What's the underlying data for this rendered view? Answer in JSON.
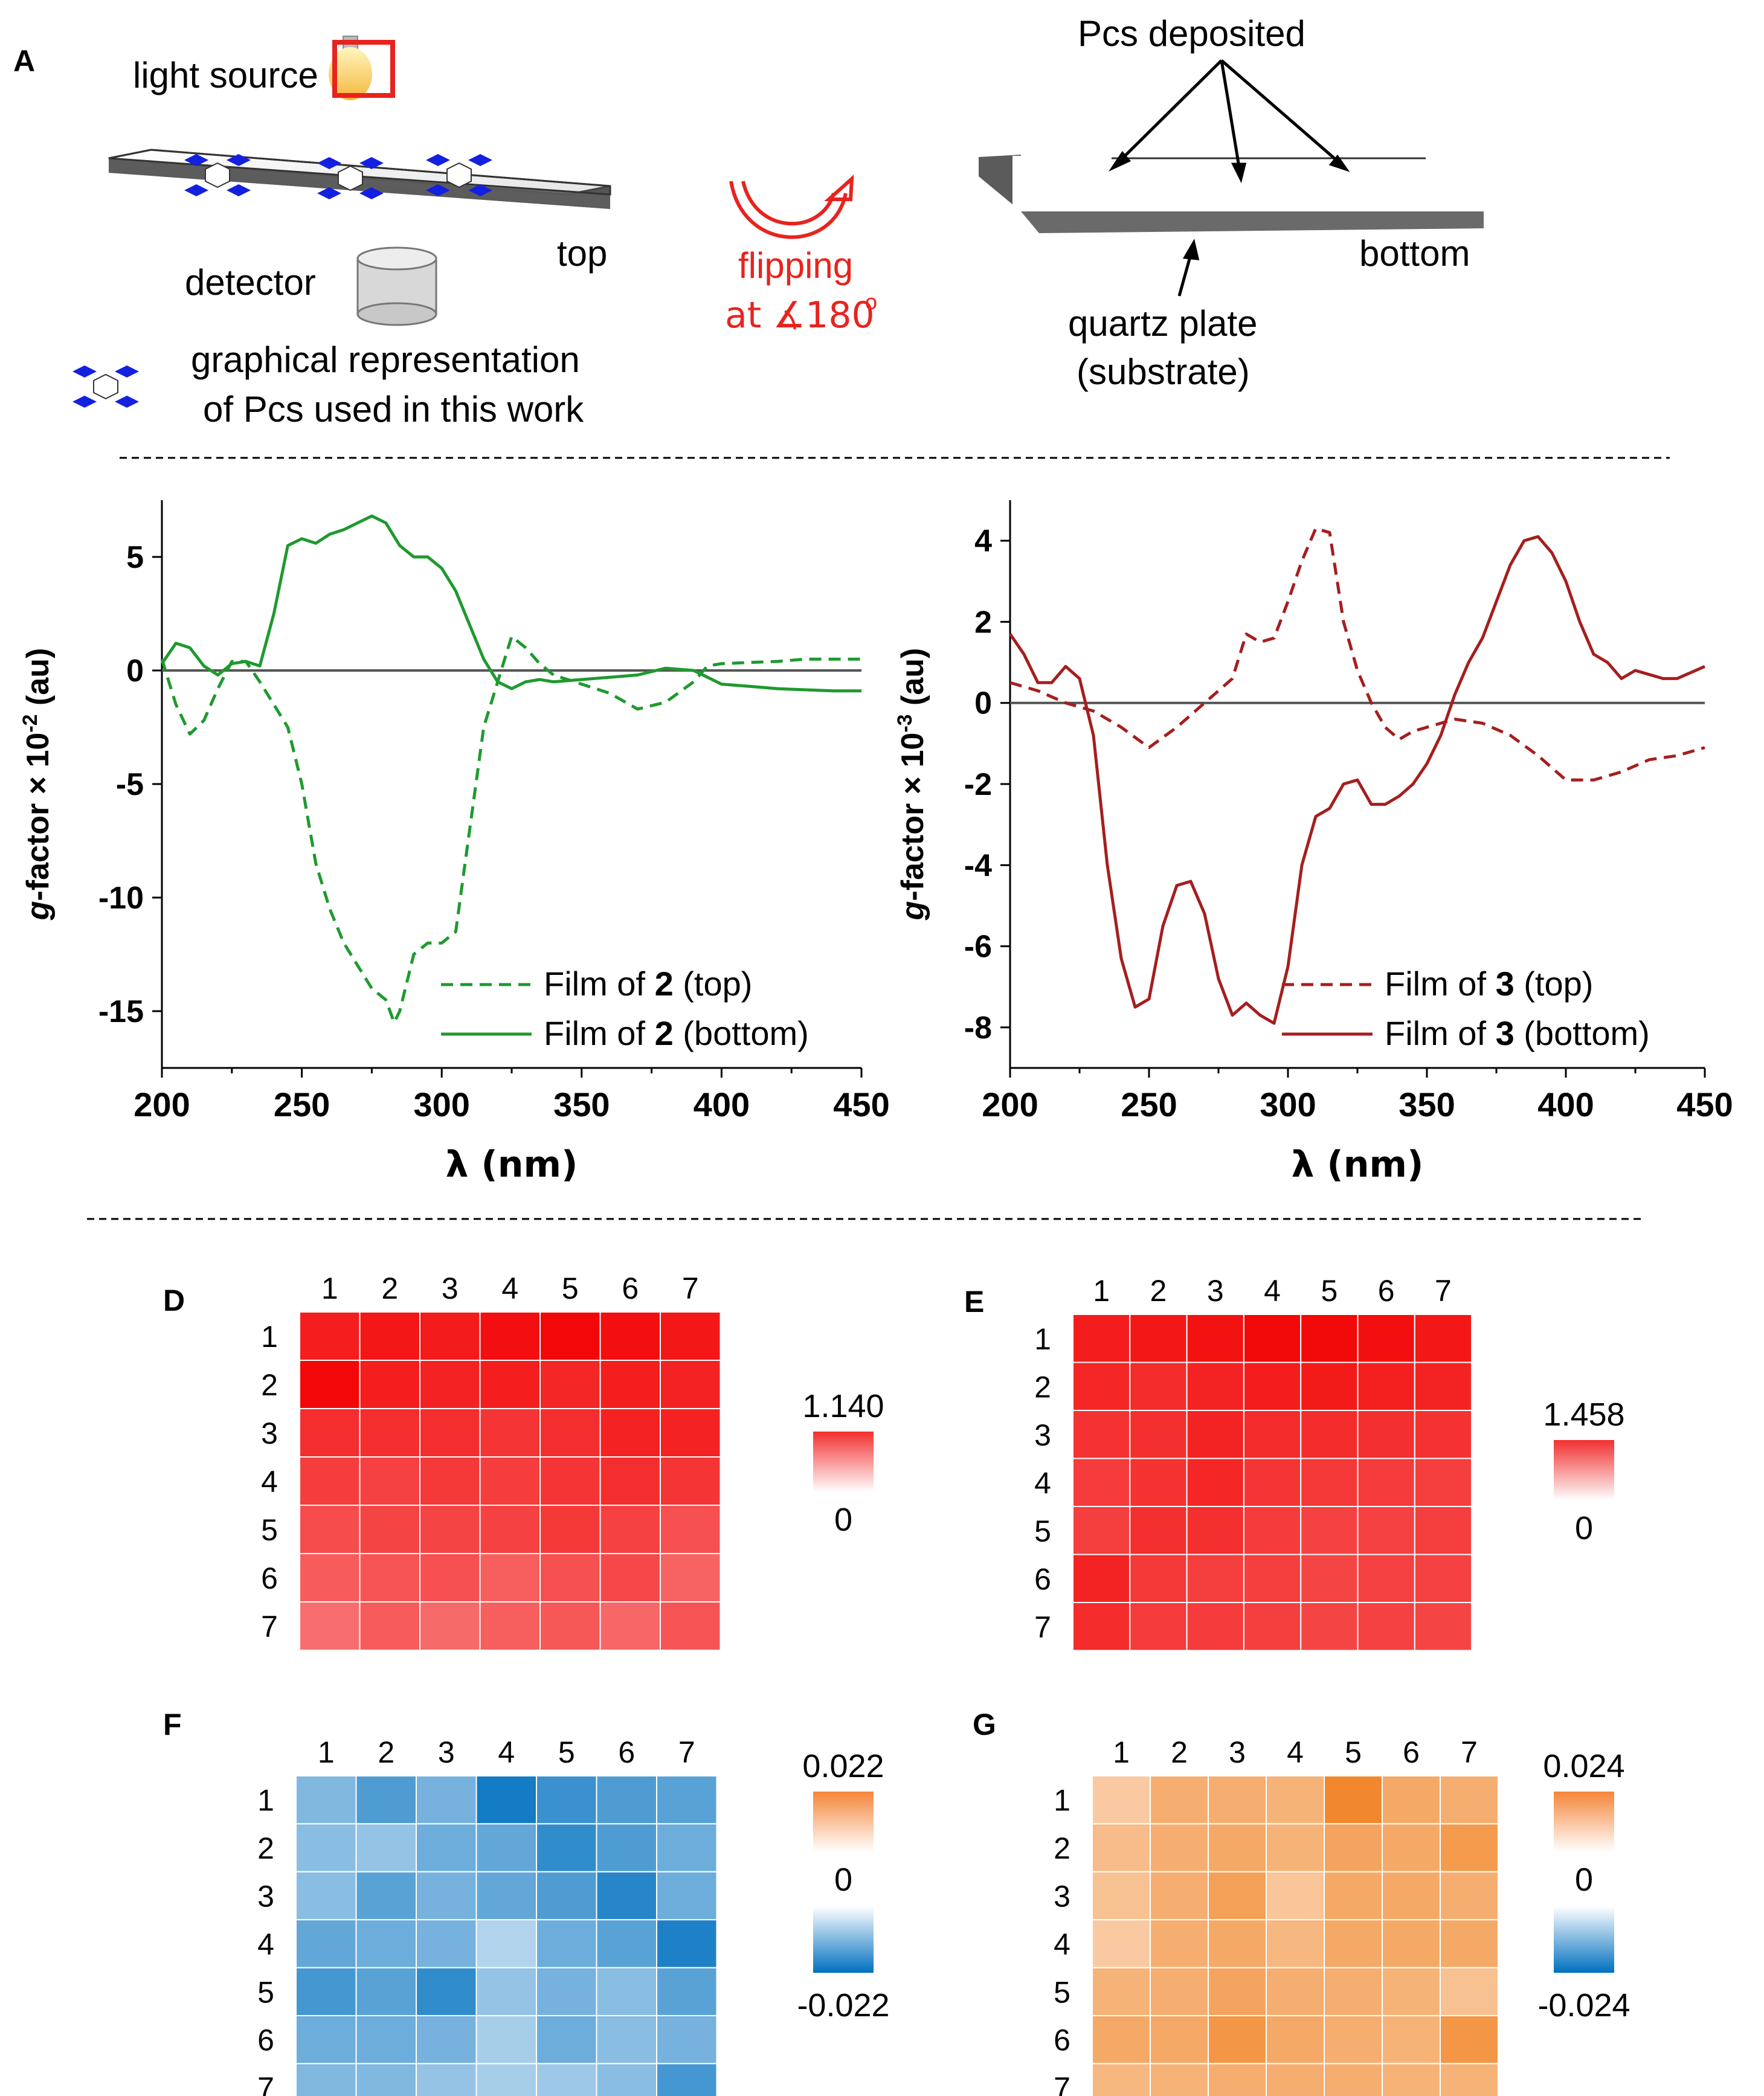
{
  "panel_a": {
    "letter": "A",
    "light_source": "light source",
    "detector": "detector",
    "top": "top",
    "flip_line1": "flipping",
    "flip_line2": "at ∡180",
    "flip_degree": "o",
    "pcs_deposited": "Pcs deposited",
    "bottom": "bottom",
    "quartz1": "quartz plate",
    "quartz2": "(substrate)",
    "legend1": "graphical representation",
    "legend2": "of Pcs used in this work"
  },
  "colors": {
    "green": "#1e9a2e",
    "darkred": "#a61e1e",
    "heat_red": "#f20000",
    "heat_blue": "#0070c0",
    "heat_orange": "#f07a14",
    "annot_red": "#e8231e",
    "molecule_blue": "#1420e0"
  },
  "chart_data": [
    {
      "type": "line",
      "id": "chart-b",
      "xlabel": "λ (nm)",
      "ylabel": "g-factor × 10",
      "ylabel_exp": "-2",
      "ylabel_unit": " (au)",
      "xlim": [
        200,
        450
      ],
      "ylim": [
        -17.5,
        7.5
      ],
      "xticks": [
        "200",
        "250",
        "300",
        "350",
        "400",
        "450"
      ],
      "yticks": [
        "5",
        "0",
        "-5",
        "-10",
        "-15"
      ],
      "ytick_values": [
        5,
        0,
        -5,
        -10,
        -15
      ],
      "legend": [
        {
          "prefix": "Film of ",
          "num": "2",
          "suffix": " (top)"
        },
        {
          "prefix": "Film of ",
          "num": "2",
          "suffix": " (bottom)"
        }
      ],
      "series": [
        {
          "name": "Film of 2 (top)",
          "style": "dashed",
          "x": [
            200,
            205,
            210,
            215,
            220,
            225,
            230,
            235,
            240,
            245,
            250,
            255,
            260,
            265,
            270,
            275,
            280,
            283,
            285,
            290,
            295,
            300,
            305,
            310,
            315,
            320,
            325,
            330,
            335,
            340,
            345,
            350,
            360,
            370,
            380,
            390,
            395,
            400,
            410,
            420,
            430,
            440,
            450
          ],
          "y": [
            0.5,
            -1.5,
            -2.8,
            -2.2,
            -0.8,
            0.4,
            0.4,
            -0.5,
            -1.5,
            -2.5,
            -5.0,
            -8.5,
            -10.5,
            -12.0,
            -13.0,
            -14.0,
            -14.5,
            -15.5,
            -15.0,
            -12.5,
            -12.0,
            -12.0,
            -11.5,
            -7.0,
            -2.5,
            -0.5,
            1.5,
            1.0,
            0.3,
            -0.2,
            -0.4,
            -0.6,
            -1.0,
            -1.7,
            -1.4,
            -0.5,
            0.2,
            0.3,
            0.35,
            0.4,
            0.5,
            0.5,
            0.5
          ]
        },
        {
          "name": "Film of 2 (bottom)",
          "style": "solid",
          "x": [
            200,
            205,
            210,
            215,
            220,
            225,
            230,
            235,
            240,
            245,
            250,
            255,
            260,
            265,
            270,
            275,
            280,
            285,
            290,
            295,
            300,
            305,
            310,
            315,
            320,
            325,
            330,
            335,
            340,
            350,
            360,
            370,
            380,
            390,
            395,
            400,
            410,
            420,
            430,
            440,
            450
          ],
          "y": [
            0.3,
            1.2,
            1.0,
            0.2,
            -0.2,
            0.3,
            0.4,
            0.2,
            2.5,
            5.5,
            5.8,
            5.6,
            6.0,
            6.2,
            6.5,
            6.8,
            6.5,
            5.5,
            5.0,
            5.0,
            4.5,
            3.5,
            2.0,
            0.5,
            -0.5,
            -0.8,
            -0.5,
            -0.4,
            -0.5,
            -0.4,
            -0.3,
            -0.2,
            0.1,
            0.0,
            -0.3,
            -0.6,
            -0.7,
            -0.8,
            -0.85,
            -0.9,
            -0.9
          ]
        }
      ]
    },
    {
      "type": "line",
      "id": "chart-c",
      "xlabel": "λ (nm)",
      "ylabel": "g-factor × 10",
      "ylabel_exp": "-3",
      "ylabel_unit": " (au)",
      "xlim": [
        200,
        450
      ],
      "ylim": [
        -9,
        5
      ],
      "xticks": [
        "200",
        "250",
        "300",
        "350",
        "400",
        "450"
      ],
      "yticks": [
        "4",
        "2",
        "0",
        "-2",
        "-4",
        "-6",
        "-8"
      ],
      "ytick_values": [
        4,
        2,
        0,
        -2,
        -4,
        -6,
        -8
      ],
      "legend": [
        {
          "prefix": "Film of ",
          "num": "3",
          "suffix": " (top)"
        },
        {
          "prefix": "Film of ",
          "num": "3",
          "suffix": " (bottom)"
        }
      ],
      "series": [
        {
          "name": "Film of 3 (top)",
          "style": "dashed",
          "x": [
            200,
            210,
            220,
            230,
            240,
            250,
            260,
            270,
            280,
            285,
            290,
            295,
            300,
            305,
            310,
            315,
            320,
            325,
            330,
            335,
            340,
            345,
            350,
            360,
            370,
            380,
            390,
            400,
            410,
            420,
            430,
            440,
            450
          ],
          "y": [
            0.5,
            0.3,
            0.0,
            -0.2,
            -0.6,
            -1.1,
            -0.6,
            0.0,
            0.6,
            1.7,
            1.5,
            1.6,
            2.5,
            3.5,
            4.3,
            4.2,
            2.0,
            0.8,
            0.0,
            -0.6,
            -0.9,
            -0.7,
            -0.6,
            -0.4,
            -0.5,
            -0.8,
            -1.3,
            -1.9,
            -1.9,
            -1.7,
            -1.4,
            -1.3,
            -1.1
          ]
        },
        {
          "name": "Film of 3 (bottom)",
          "style": "solid",
          "x": [
            200,
            205,
            210,
            215,
            220,
            225,
            230,
            235,
            240,
            245,
            250,
            255,
            260,
            265,
            270,
            275,
            280,
            285,
            290,
            295,
            300,
            305,
            310,
            315,
            320,
            325,
            330,
            335,
            340,
            345,
            350,
            355,
            360,
            365,
            370,
            375,
            380,
            385,
            390,
            395,
            400,
            405,
            410,
            415,
            420,
            425,
            430,
            435,
            440,
            445,
            450
          ],
          "y": [
            1.7,
            1.2,
            0.5,
            0.5,
            0.9,
            0.6,
            -0.8,
            -4.0,
            -6.3,
            -7.5,
            -7.3,
            -5.5,
            -4.5,
            -4.4,
            -5.2,
            -6.8,
            -7.7,
            -7.4,
            -7.7,
            -7.9,
            -6.5,
            -4.0,
            -2.8,
            -2.6,
            -2.0,
            -1.9,
            -2.5,
            -2.5,
            -2.3,
            -2.0,
            -1.5,
            -0.8,
            0.2,
            1.0,
            1.6,
            2.5,
            3.4,
            4.0,
            4.1,
            3.7,
            3.0,
            2.0,
            1.2,
            1.0,
            0.6,
            0.8,
            0.7,
            0.6,
            0.6,
            0.75,
            0.9
          ]
        }
      ]
    },
    {
      "type": "heatmap",
      "id": "heat-d",
      "label": "D",
      "col_labels": [
        "1",
        "2",
        "3",
        "4",
        "5",
        "6",
        "7"
      ],
      "row_labels": [
        "1",
        "2",
        "3",
        "4",
        "5",
        "6",
        "7"
      ],
      "color": "#f20000",
      "scale_max": "1.140",
      "scale_mid": "0",
      "vmax": 1.14,
      "values": [
        [
          0.98,
          1.02,
          1.0,
          1.06,
          1.1,
          1.06,
          1.02
        ],
        [
          1.1,
          0.98,
          0.96,
          0.98,
          0.94,
          0.98,
          0.96
        ],
        [
          0.9,
          0.9,
          0.9,
          0.86,
          0.9,
          0.96,
          0.96
        ],
        [
          0.82,
          0.8,
          0.84,
          0.82,
          0.86,
          0.9,
          0.86
        ],
        [
          0.74,
          0.78,
          0.78,
          0.8,
          0.84,
          0.8,
          0.72
        ],
        [
          0.66,
          0.7,
          0.72,
          0.64,
          0.72,
          0.76,
          0.62
        ],
        [
          0.56,
          0.66,
          0.58,
          0.64,
          0.68,
          0.6,
          0.7
        ]
      ]
    },
    {
      "type": "heatmap",
      "id": "heat-e",
      "label": "E",
      "col_labels": [
        "1",
        "2",
        "3",
        "4",
        "5",
        "6",
        "7"
      ],
      "row_labels": [
        "1",
        "2",
        "3",
        "4",
        "5",
        "6",
        "7"
      ],
      "color": "#f20000",
      "scale_max": "1.458",
      "scale_mid": "0",
      "vmax": 1.458,
      "values": [
        [
          1.26,
          1.3,
          1.34,
          1.4,
          1.4,
          1.36,
          1.3
        ],
        [
          1.2,
          1.16,
          1.22,
          1.26,
          1.28,
          1.24,
          1.22
        ],
        [
          1.12,
          1.14,
          1.22,
          1.16,
          1.16,
          1.14,
          1.12
        ],
        [
          1.06,
          1.12,
          1.2,
          1.1,
          1.08,
          1.06,
          1.04
        ],
        [
          1.04,
          1.14,
          1.14,
          1.06,
          1.02,
          1.02,
          1.04
        ],
        [
          1.22,
          1.08,
          1.04,
          1.04,
          1.0,
          1.02,
          1.02
        ],
        [
          1.16,
          1.06,
          1.06,
          1.04,
          1.0,
          1.02,
          1.0
        ]
      ]
    },
    {
      "type": "heatmap",
      "id": "heat-f",
      "label": "F",
      "col_labels": [
        "1",
        "2",
        "3",
        "4",
        "5",
        "6",
        "7"
      ],
      "row_labels": [
        "1",
        "2",
        "3",
        "4",
        "5",
        "6",
        "7"
      ],
      "color": "#0070c0",
      "scale_max": "0.022",
      "scale_mid": "0",
      "scale_min": "-0.022",
      "vmax": 0.022,
      "values": [
        [
          -0.009,
          -0.014,
          -0.01,
          -0.02,
          -0.016,
          -0.014,
          -0.013
        ],
        [
          -0.008,
          -0.007,
          -0.011,
          -0.012,
          -0.017,
          -0.014,
          -0.011
        ],
        [
          -0.008,
          -0.013,
          -0.01,
          -0.012,
          -0.014,
          -0.018,
          -0.011
        ],
        [
          -0.012,
          -0.011,
          -0.01,
          -0.004,
          -0.011,
          -0.013,
          -0.019
        ],
        [
          -0.015,
          -0.013,
          -0.017,
          -0.007,
          -0.01,
          -0.008,
          -0.013
        ],
        [
          -0.011,
          -0.011,
          -0.01,
          -0.005,
          -0.011,
          -0.008,
          -0.01
        ],
        [
          -0.009,
          -0.009,
          -0.007,
          -0.005,
          -0.006,
          -0.008,
          -0.015
        ]
      ]
    },
    {
      "type": "heatmap",
      "id": "heat-g",
      "label": "G",
      "col_labels": [
        "1",
        "2",
        "3",
        "4",
        "5",
        "6",
        "7"
      ],
      "row_labels": [
        "1",
        "2",
        "3",
        "4",
        "5",
        "6",
        "7"
      ],
      "color": "#f07a14",
      "scale_max": "0.024",
      "scale_mid": "0",
      "scale_min": "-0.024",
      "vmax": 0.024,
      "values": [
        [
          0.007,
          0.013,
          0.013,
          0.012,
          0.021,
          0.014,
          0.013
        ],
        [
          0.01,
          0.013,
          0.014,
          0.012,
          0.015,
          0.014,
          0.017
        ],
        [
          0.009,
          0.013,
          0.016,
          0.008,
          0.014,
          0.014,
          0.013
        ],
        [
          0.007,
          0.013,
          0.014,
          0.011,
          0.014,
          0.014,
          0.014
        ],
        [
          0.012,
          0.013,
          0.015,
          0.013,
          0.013,
          0.012,
          0.009
        ],
        [
          0.014,
          0.014,
          0.018,
          0.014,
          0.013,
          0.012,
          0.018
        ],
        [
          0.011,
          0.012,
          0.013,
          0.013,
          0.013,
          0.012,
          0.012
        ]
      ]
    }
  ]
}
